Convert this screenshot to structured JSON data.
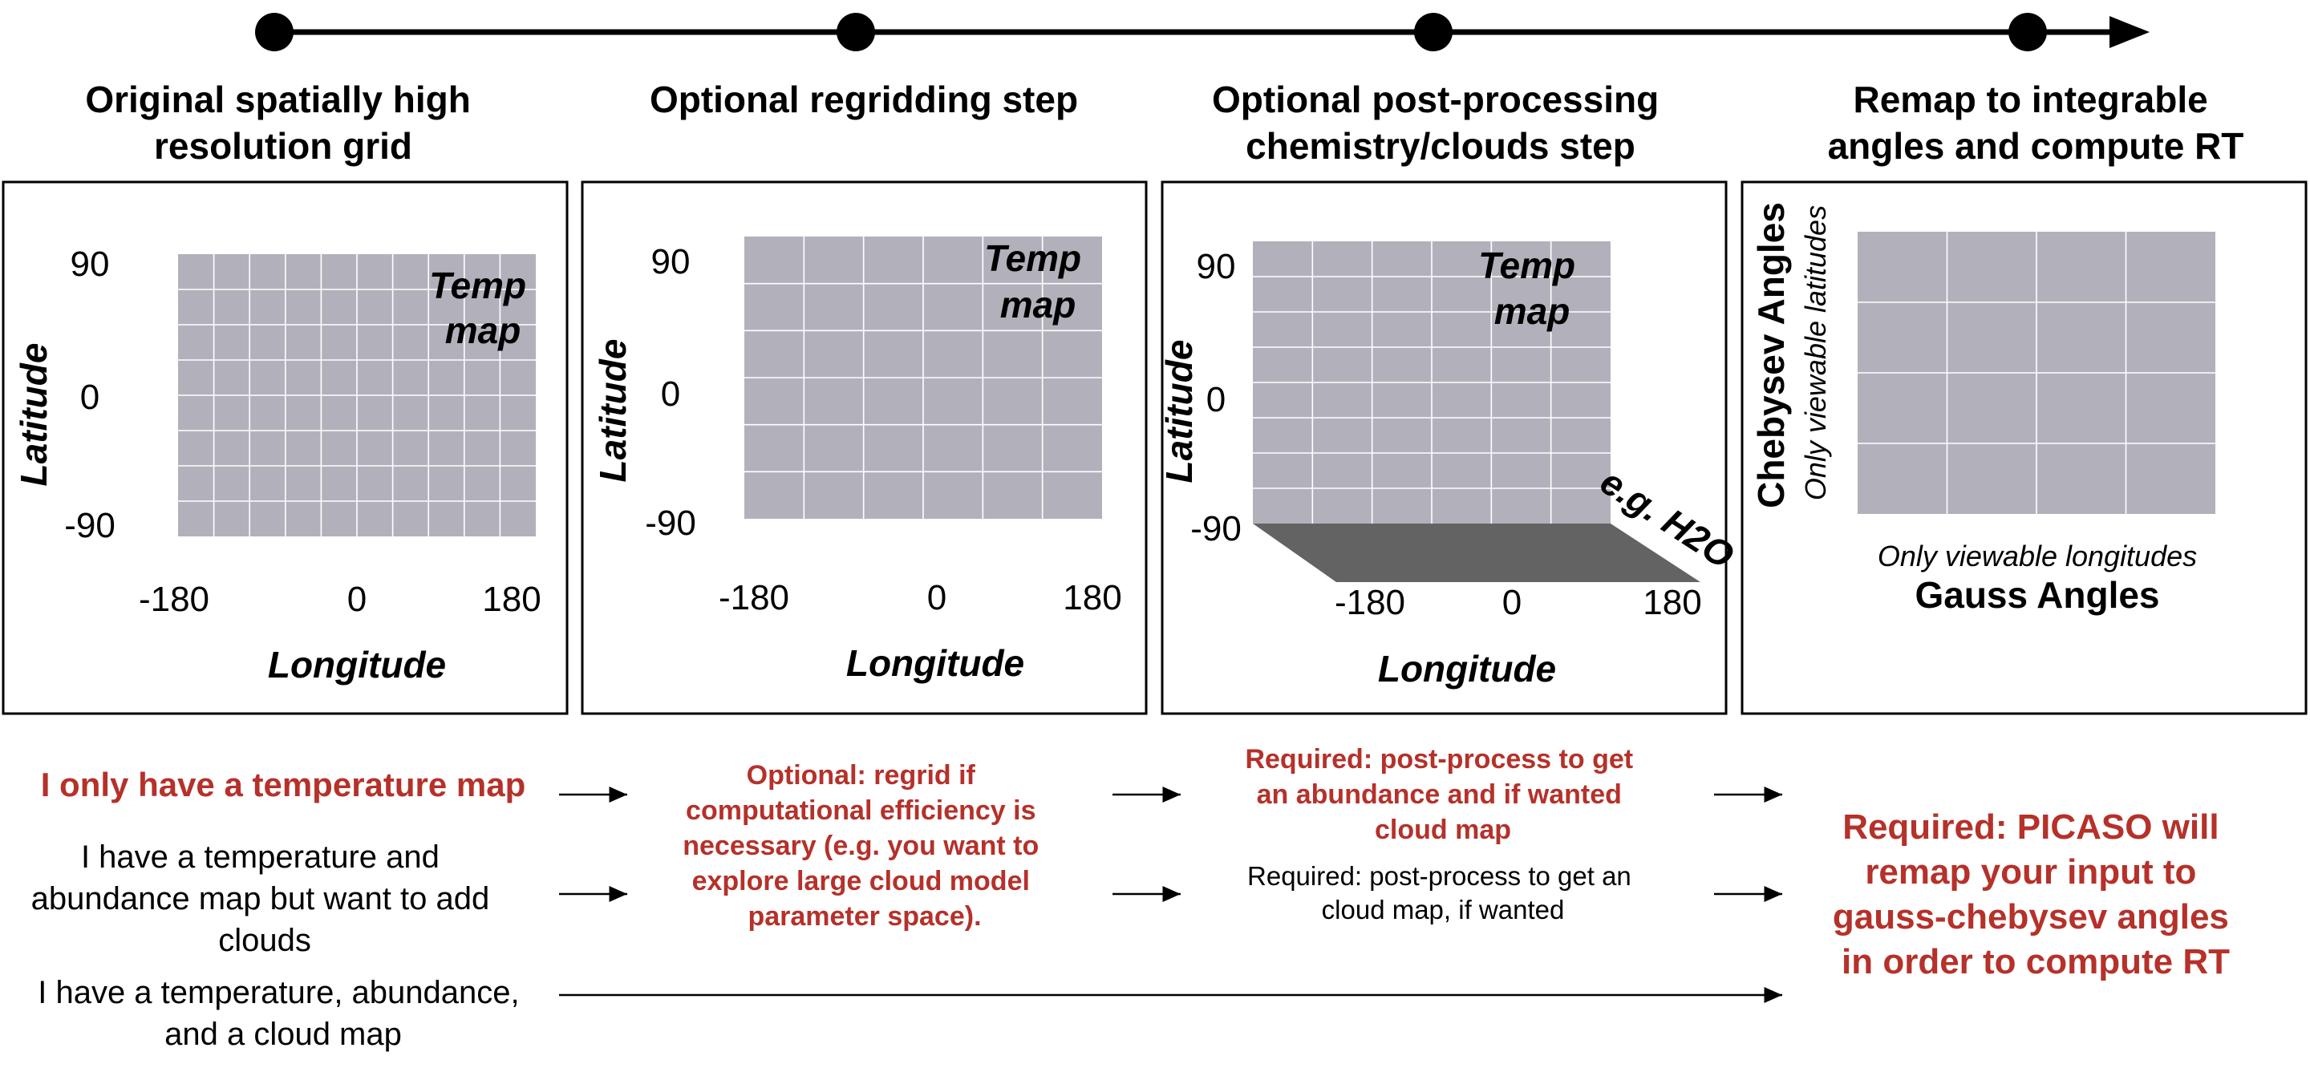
{
  "timeline": {
    "points": 4,
    "color": "#000000"
  },
  "steps": [
    {
      "title_lines": [
        "Original spatially high",
        "resolution grid"
      ]
    },
    {
      "title_lines": [
        "Optional regridding step"
      ]
    },
    {
      "title_lines": [
        "Optional post-processing",
        "chemistry/clouds step"
      ]
    },
    {
      "title_lines": [
        "Remap to integrable",
        "angles and compute RT"
      ]
    }
  ],
  "panels": {
    "grid_color": "#b2b1bb",
    "floor_color": "#636363",
    "map_label_lines": [
      "Temp",
      "map"
    ],
    "lat_ticks": [
      "90",
      "0",
      "-90"
    ],
    "lon_ticks": [
      "-180",
      "0",
      "180"
    ],
    "lat_axis_label": "Latitude",
    "lon_axis_label": "Longitude",
    "floor_label": "e.g. H2O",
    "angles": {
      "y_title": "Chebysev Angles",
      "y_subtitle": "Only viewable latitudes",
      "x_subtitle": "Only viewable longitudes",
      "x_title": "Gauss Angles"
    }
  },
  "scenarios": {
    "accent_color": "#b5312a",
    "row1_label": "I only have a temperature map",
    "row2_label_lines": [
      "I have a temperature and",
      "abundance map but want to add",
      "clouds"
    ],
    "row3_label_lines": [
      "I have a temperature, abundance,",
      "and a cloud map"
    ],
    "regrid_note_lines": [
      "Optional: regrid if",
      "computational efficiency is",
      "necessary (e.g. you want to",
      "explore large cloud model",
      "parameter space)."
    ],
    "postprocess_required_lines": [
      "Required: post-process to get",
      "an abundance and if wanted",
      "cloud map"
    ],
    "postprocess_cloud_lines": [
      "Required: post-process to get an",
      "cloud map, if wanted"
    ],
    "picaso_note_lines": [
      "Required: PICASO will",
      "remap your input to",
      "gauss-chebysev angles",
      "in order to compute RT"
    ]
  }
}
